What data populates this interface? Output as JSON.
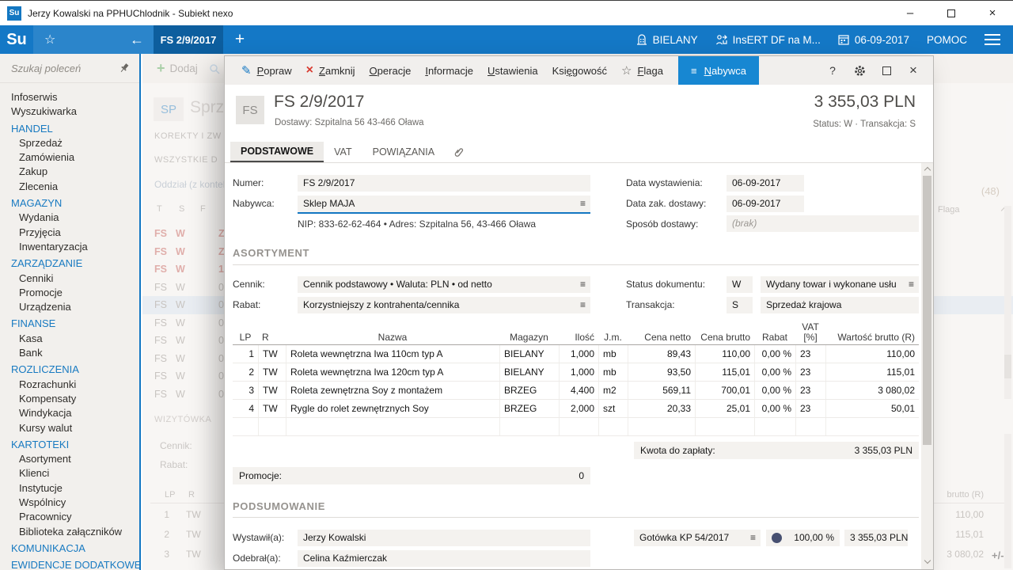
{
  "title_bar": {
    "app_initials": "Su",
    "title": "Jerzy Kowalski na PPHUChlodnik - Subiekt nexo"
  },
  "top_nav": {
    "logo": "Su",
    "tab_label": "FS 2/9/2017",
    "branch_label": "BIELANY",
    "account_label": "InsERT DF na M...",
    "date_label": "06-09-2017",
    "help_label": "POMOC"
  },
  "sidebar": {
    "search_placeholder": "Szukaj poleceń",
    "items": [
      {
        "label": "Infoserwis",
        "type": "top"
      },
      {
        "label": "Wyszukiwarka",
        "type": "top"
      },
      {
        "label": "HANDEL",
        "type": "header"
      },
      {
        "label": "Sprzedaż",
        "type": "sub"
      },
      {
        "label": "Zamówienia",
        "type": "sub"
      },
      {
        "label": "Zakup",
        "type": "sub"
      },
      {
        "label": "Zlecenia",
        "type": "sub"
      },
      {
        "label": "MAGAZYN",
        "type": "header"
      },
      {
        "label": "Wydania",
        "type": "sub"
      },
      {
        "label": "Przyjęcia",
        "type": "sub"
      },
      {
        "label": "Inwentaryzacja",
        "type": "sub"
      },
      {
        "label": "ZARZĄDZANIE",
        "type": "header"
      },
      {
        "label": "Cenniki",
        "type": "sub"
      },
      {
        "label": "Promocje",
        "type": "sub"
      },
      {
        "label": "Urządzenia",
        "type": "sub"
      },
      {
        "label": "FINANSE",
        "type": "header"
      },
      {
        "label": "Kasa",
        "type": "sub"
      },
      {
        "label": "Bank",
        "type": "sub"
      },
      {
        "label": "ROZLICZENIA",
        "type": "header"
      },
      {
        "label": "Rozrachunki",
        "type": "sub"
      },
      {
        "label": "Kompensaty",
        "type": "sub"
      },
      {
        "label": "Windykacja",
        "type": "sub"
      },
      {
        "label": "Kursy walut",
        "type": "sub"
      },
      {
        "label": "KARTOTEKI",
        "type": "header"
      },
      {
        "label": "Asortyment",
        "type": "sub"
      },
      {
        "label": "Klienci",
        "type": "sub"
      },
      {
        "label": "Instytucje",
        "type": "sub"
      },
      {
        "label": "Wspólnicy",
        "type": "sub"
      },
      {
        "label": "Pracownicy",
        "type": "sub"
      },
      {
        "label": "Biblioteka załączników",
        "type": "sub"
      },
      {
        "label": "KOMUNIKACJA",
        "type": "header"
      },
      {
        "label": "EWIDENCJE DODATKOWE",
        "type": "header"
      }
    ]
  },
  "background": {
    "add_label": "Dodaj",
    "tab_code": "SP",
    "tab_text": "Sprz",
    "filter1": "KOREKTY I ZW",
    "filter2": "WSZYSTKIE D",
    "context_label": "Oddział (z kontek",
    "col_t": "T",
    "col_s": "S",
    "col_f": "F",
    "list_rows": [
      {
        "t": "FS",
        "s": "W",
        "frag": "Z",
        "cls": "red"
      },
      {
        "t": "FS",
        "s": "W",
        "frag": "Z",
        "cls": "red"
      },
      {
        "t": "FS",
        "s": "W",
        "frag": "1",
        "cls": "red"
      },
      {
        "t": "FS",
        "s": "W",
        "frag": "0",
        "cls": ""
      },
      {
        "t": "FS",
        "s": "W",
        "frag": "0",
        "cls": "sel"
      },
      {
        "t": "FS",
        "s": "W",
        "frag": "0",
        "cls": ""
      },
      {
        "t": "FS",
        "s": "W",
        "frag": "0",
        "cls": ""
      },
      {
        "t": "FS",
        "s": "W",
        "frag": "0",
        "cls": ""
      },
      {
        "t": "FS",
        "s": "W",
        "frag": "0",
        "cls": ""
      },
      {
        "t": "FS",
        "s": "W",
        "frag": "0",
        "cls": ""
      }
    ],
    "count_badge": "(48)",
    "flaga_col": "Flaga",
    "wizytowka_label": "WIZYTÓWKA",
    "cennik_label": "Cennik:",
    "rabat_label": "Rabat:",
    "col_lp": "LP",
    "col_r": "R",
    "brutto_col": "brutto (R)",
    "mini_rows": [
      {
        "lp": "1",
        "r": "TW",
        "value": "110,00"
      },
      {
        "lp": "2",
        "r": "TW",
        "value": "115,01"
      },
      {
        "lp": "3",
        "r": "TW",
        "value": "3 080,02"
      }
    ],
    "plusminus": "+/-"
  },
  "dialog": {
    "toolbar": {
      "popraw": {
        "label": "Popraw",
        "u": 0
      },
      "zamknij": {
        "label": "Zamknij",
        "u": 0
      },
      "operacje": {
        "label": "Operacje",
        "u": 0
      },
      "informacje": {
        "label": "Informacje",
        "u": 0
      },
      "ustawienia": {
        "label": "Ustawienia",
        "u": 0
      },
      "ksiegowosc": {
        "label": "Księgowość",
        "u": 3
      },
      "flaga": {
        "label": "Flaga",
        "u": 0
      },
      "nabywca": {
        "label": "Nabywca",
        "u": 0
      },
      "help_label": "?"
    },
    "header": {
      "badge": "FS",
      "title": "FS 2/9/2017",
      "subtitle": "Dostawy: Szpitalna 56 43-466 Oława",
      "amount": "3 355,03 PLN",
      "status_line": "Status: W  ·  Transakcja: S"
    },
    "tabs": {
      "tab1": "PODSTAWOWE",
      "tab2": "VAT",
      "tab3": "POWIĄZANIA"
    },
    "form": {
      "numer_label": "Numer:",
      "numer_value": "FS 2/9/2017",
      "nabywca_label": "Nabywca:",
      "nabywca_value": "Sklep MAJA",
      "nip_line": "NIP:  833-62-62-464  •  Adres:  Szpitalna 56, 43-466 Oława",
      "data_wyst_label": "Data wystawienia:",
      "data_wyst_value": "06-09-2017",
      "data_zak_label": "Data zak. dostawy:",
      "data_zak_value": "06-09-2017",
      "sposob_label": "Sposób dostawy:",
      "sposob_value": "(brak)",
      "asortyment_header": "ASORTYMENT",
      "cennik_label": "Cennik:",
      "cennik_value": "Cennik podstawowy • Waluta: PLN • od netto",
      "rabat_label": "Rabat:",
      "rabat_value": "Korzystniejszy z kontrahenta/cennika",
      "status_label": "Status dokumentu:",
      "status_code": "W",
      "status_desc": "Wydany towar i wykonane usłu",
      "transakcja_label": "Transakcja:",
      "transakcja_code": "S",
      "transakcja_desc": "Sprzedaż krajowa"
    },
    "table": {
      "col_lp": "LP",
      "col_r": "R",
      "col_nazwa": "Nazwa",
      "col_magazyn": "Magazyn",
      "col_ilosc": "Ilość",
      "col_jm": "J.m.",
      "col_cena_netto": "Cena netto",
      "col_cena_brutto": "Cena brutto",
      "col_rabat": "Rabat",
      "col_vat_1": "VAT",
      "col_vat_2": "[%]",
      "col_wartosc": "Wartość brutto (R)",
      "rows": [
        {
          "lp": "1",
          "r": "TW",
          "name": "Roleta wewnętrzna Iwa 110cm typ A",
          "mag": "BIELANY",
          "qty": "1,000",
          "jm": "mb",
          "netto": "89,43",
          "brutto": "110,00",
          "rabat": "0,00 %",
          "vat": "23",
          "total": "110,00"
        },
        {
          "lp": "2",
          "r": "TW",
          "name": "Roleta wewnętrzna Iwa 120cm typ A",
          "mag": "BIELANY",
          "qty": "1,000",
          "jm": "mb",
          "netto": "93,50",
          "brutto": "115,01",
          "rabat": "0,00 %",
          "vat": "23",
          "total": "115,01"
        },
        {
          "lp": "3",
          "r": "TW",
          "name": "Roleta zewnętrzna Soy z montażem",
          "mag": "BRZEG",
          "qty": "4,400",
          "jm": "m2",
          "netto": "569,11",
          "brutto": "700,01",
          "rabat": "0,00 %",
          "vat": "23",
          "total": "3 080,02"
        },
        {
          "lp": "4",
          "r": "TW",
          "name": "Rygle do rolet zewnętrznych Soy",
          "mag": "BRZEG",
          "qty": "2,000",
          "jm": "szt",
          "netto": "20,33",
          "brutto": "25,01",
          "rabat": "0,00 %",
          "vat": "23",
          "total": "50,01"
        }
      ]
    },
    "kwota_label": "Kwota do zapłaty:",
    "kwota_value": "3 355,03 PLN",
    "promocje_label": "Promocje:",
    "promocje_value": "0",
    "podsumowanie_header": "PODSUMOWANIE",
    "wystawil_label": "Wystawił(a):",
    "wystawil_value": "Jerzy Kowalski",
    "odebral_label": "Odebrał(a):",
    "odebral_value": "Celina Kaźmierczak",
    "payment_value": "Gotówka KP 54/2017",
    "payment_percent": "100,00 %",
    "payment_amount": "3 355,03 PLN"
  }
}
